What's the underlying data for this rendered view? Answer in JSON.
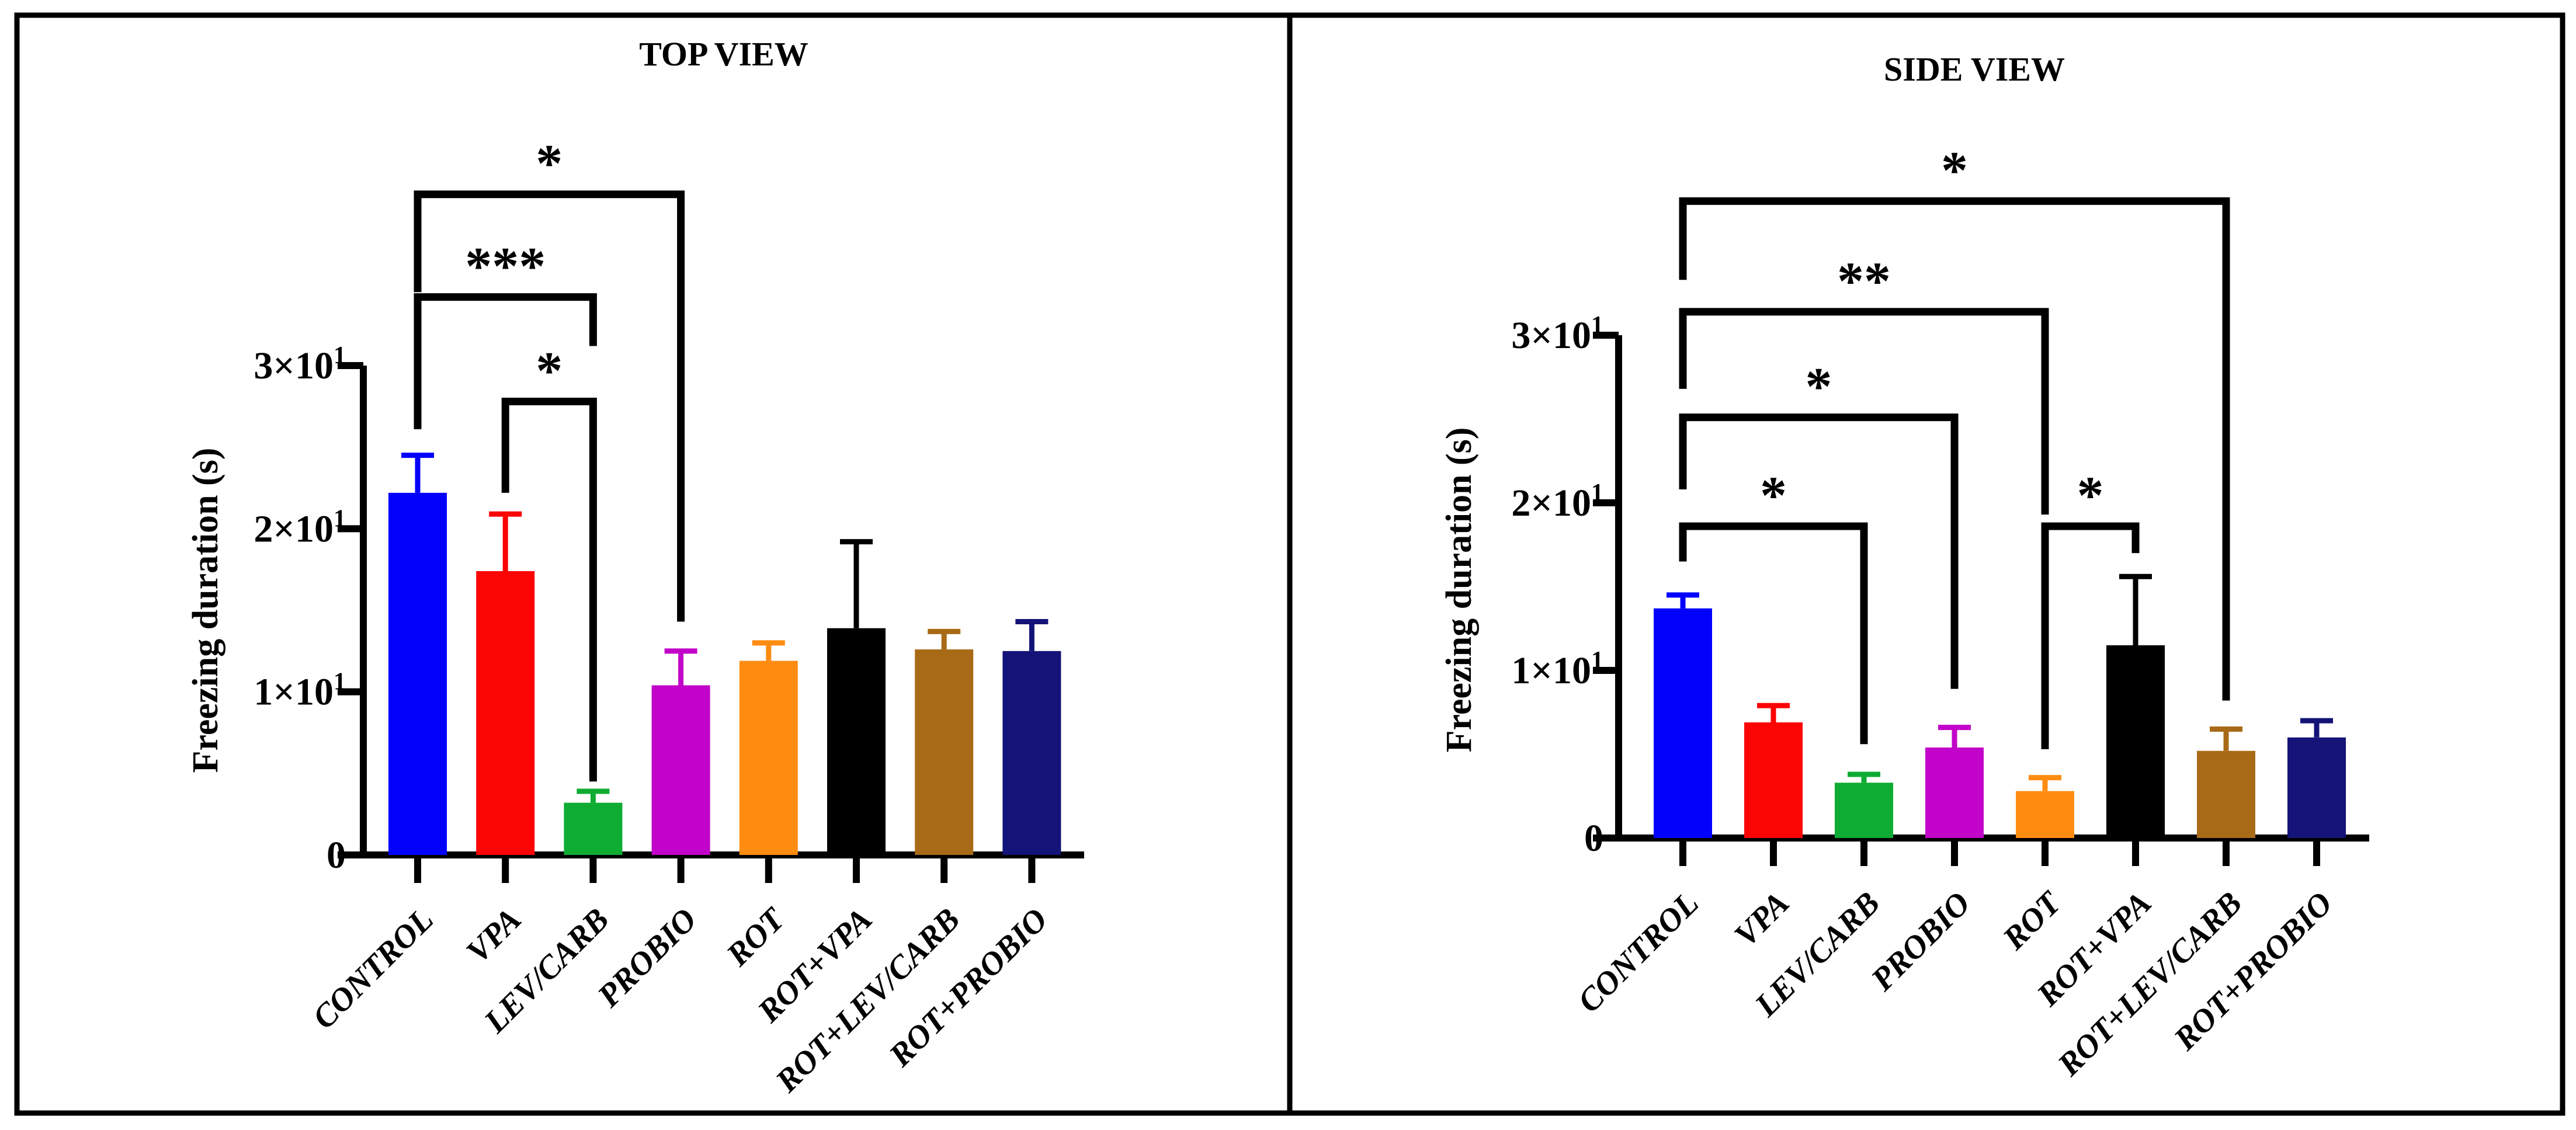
{
  "figure": {
    "background": "#ffffff",
    "border_color": "#000000"
  },
  "chart_data": [
    {
      "type": "bar",
      "title": "TOP VIEW",
      "xlabel": "",
      "ylabel": "Freezing duration (s)",
      "ylim": [
        0,
        30
      ],
      "grid": false,
      "legend": false,
      "yticks": [
        {
          "label": "0",
          "sup": "",
          "value": 0
        },
        {
          "label": "1×10",
          "sup": "1",
          "value": 10
        },
        {
          "label": "2×10",
          "sup": "1",
          "value": 20
        },
        {
          "label": "3×10",
          "sup": "1",
          "value": 30
        }
      ],
      "categories": [
        "CONTROL",
        "VPA",
        "LEV/CARB",
        "PROBIO",
        "ROT",
        "ROT+VPA",
        "ROT+LEV/CARB",
        "ROT+PROBIO"
      ],
      "values": [
        22.2,
        17.4,
        3.2,
        10.4,
        11.9,
        13.9,
        12.6,
        12.5
      ],
      "errors_top": [
        24.5,
        20.9,
        3.9,
        12.5,
        13.0,
        19.2,
        13.7,
        14.3
      ],
      "colors": [
        "#0202FC",
        "#FB0404",
        "#0EAC32",
        "#C203C9",
        "#FE8C11",
        "#000000",
        "#A86A17",
        "#131378"
      ],
      "significance_brackets": [
        {
          "stars": "*",
          "from": 0,
          "to": 3,
          "y": 40.5,
          "drop_left_to": 34.5,
          "drop_right_to": 14.3
        },
        {
          "stars": "***",
          "from": 0,
          "to": 2,
          "y": 34.2,
          "drop_left_to": 26.1,
          "drop_right_to": 31.2
        },
        {
          "stars": "*",
          "from": 1,
          "to": 2,
          "y": 27.8,
          "drop_left_to": 22.2,
          "drop_right_to": 4.5
        }
      ]
    },
    {
      "type": "bar",
      "title": "SIDE VIEW",
      "xlabel": "",
      "ylabel": "Freezing duration (s)",
      "ylim": [
        0,
        30
      ],
      "grid": false,
      "legend": false,
      "yticks": [
        {
          "label": "0",
          "sup": "",
          "value": 0
        },
        {
          "label": "1×10",
          "sup": "1",
          "value": 10
        },
        {
          "label": "2×10",
          "sup": "1",
          "value": 20
        },
        {
          "label": "3×10",
          "sup": "1",
          "value": 30
        }
      ],
      "categories": [
        "CONTROL",
        "VPA",
        "LEV/CARB",
        "PROBIO",
        "ROT",
        "ROT+VPA",
        "ROT+LEV/CARB",
        "ROT+PROBIO"
      ],
      "values": [
        13.7,
        6.9,
        3.3,
        5.4,
        2.8,
        11.5,
        5.2,
        6.0
      ],
      "errors_top": [
        14.5,
        7.9,
        3.8,
        6.6,
        3.6,
        15.6,
        6.5,
        7.0
      ],
      "colors": [
        "#0202FC",
        "#FB0404",
        "#0EAC32",
        "#C203C9",
        "#FE8C11",
        "#000000",
        "#A86A17",
        "#131378"
      ],
      "significance_brackets": [
        {
          "stars": "*",
          "from": 0,
          "to": 6,
          "y": 38.0,
          "drop_left_to": 33.3,
          "drop_right_to": 8.2
        },
        {
          "stars": "**",
          "from": 0,
          "to": 4,
          "y": 31.4,
          "drop_left_to": 26.8,
          "drop_right_to": 19.3
        },
        {
          "stars": "*",
          "from": 0,
          "to": 3,
          "y": 25.1,
          "drop_left_to": 20.8,
          "drop_right_to": 8.9
        },
        {
          "stars": "*",
          "from": 0,
          "to": 2,
          "y": 18.6,
          "drop_left_to": 16.5,
          "drop_right_to": 5.6
        },
        {
          "stars": "*",
          "from": 4,
          "to": 5,
          "y": 18.6,
          "drop_left_to": 5.3,
          "drop_right_to": 17.0
        }
      ]
    }
  ]
}
